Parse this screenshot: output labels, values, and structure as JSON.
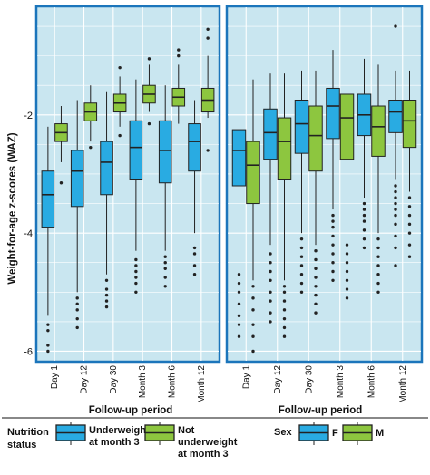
{
  "chart_data": {
    "type": "boxplot",
    "ylabel": "Weight-for-age z-scores (WAZ)",
    "xlabel": "Follow-up period",
    "ylim": [
      -6.1,
      -0.3
    ],
    "yticks": [
      -6,
      -4,
      -2
    ],
    "categories": [
      "Day 1",
      "Day 12",
      "Day 30",
      "Month 3",
      "Month 6",
      "Month 12"
    ],
    "grid": true,
    "colors": {
      "blue": "#29abe2",
      "green": "#8dc63f",
      "panel": "#c9e6f0",
      "frame": "#1b75bb"
    },
    "panels": [
      {
        "legend_title": "Nutrition status",
        "series": [
          {
            "name": "Underweight at month 3",
            "color": "#29abe2",
            "boxes": [
              {
                "whisker_low": -5.4,
                "q1": -3.9,
                "median": -3.35,
                "q3": -2.95,
                "whisker_high": -2.2,
                "outliers": [
                  -5.55,
                  -5.65,
                  -5.9,
                  -6.0
                ]
              },
              {
                "whisker_low": -5.0,
                "q1": -3.55,
                "median": -2.95,
                "q3": -2.6,
                "whisker_high": -1.75,
                "outliers": [
                  -5.1,
                  -5.2,
                  -5.3,
                  -5.45,
                  -5.6
                ]
              },
              {
                "whisker_low": -4.7,
                "q1": -3.35,
                "median": -2.8,
                "q3": -2.45,
                "whisker_high": -1.6,
                "outliers": [
                  -4.8,
                  -4.95,
                  -5.05,
                  -5.15,
                  -5.25
                ]
              },
              {
                "whisker_low": -4.3,
                "q1": -3.1,
                "median": -2.55,
                "q3": -2.1,
                "whisker_high": -1.4,
                "outliers": [
                  -4.45,
                  -4.55,
                  -4.65,
                  -4.75,
                  -4.85,
                  -5.0
                ]
              },
              {
                "whisker_low": -4.3,
                "q1": -3.15,
                "median": -2.6,
                "q3": -2.1,
                "whisker_high": -1.5,
                "outliers": [
                  -4.4,
                  -4.5,
                  -4.6,
                  -4.75,
                  -4.9
                ]
              },
              {
                "whisker_low": -4.0,
                "q1": -2.95,
                "median": -2.45,
                "q3": -2.15,
                "whisker_high": -1.75,
                "outliers": [
                  -4.25,
                  -4.35,
                  -4.55,
                  -4.7
                ]
              }
            ]
          },
          {
            "name": "Not underweight at month 3",
            "color": "#8dc63f",
            "boxes": [
              {
                "whisker_low": -2.8,
                "q1": -2.45,
                "median": -2.3,
                "q3": -2.15,
                "whisker_high": -1.85,
                "outliers": [
                  -3.15
                ]
              },
              {
                "whisker_low": -2.45,
                "q1": -2.1,
                "median": -1.95,
                "q3": -1.8,
                "whisker_high": -1.5,
                "outliers": [
                  -2.55
                ]
              },
              {
                "whisker_low": -2.2,
                "q1": -1.95,
                "median": -1.8,
                "q3": -1.65,
                "whisker_high": -1.35,
                "outliers": [
                  -1.2,
                  -2.35
                ]
              },
              {
                "whisker_low": -1.95,
                "q1": -1.8,
                "median": -1.65,
                "q3": -1.5,
                "whisker_high": -1.15,
                "outliers": [
                  -1.05,
                  -2.15
                ]
              },
              {
                "whisker_low": -2.15,
                "q1": -1.85,
                "median": -1.7,
                "q3": -1.55,
                "whisker_high": -1.15,
                "outliers": [
                  -1.0,
                  -0.9
                ]
              },
              {
                "whisker_low": -2.05,
                "q1": -1.95,
                "median": -1.75,
                "q3": -1.55,
                "whisker_high": -1.0,
                "outliers": [
                  -0.55,
                  -0.7,
                  -2.6
                ]
              }
            ]
          }
        ]
      },
      {
        "legend_title": "Sex",
        "series": [
          {
            "name": "F",
            "color": "#29abe2",
            "boxes": [
              {
                "whisker_low": -4.6,
                "q1": -3.2,
                "median": -2.6,
                "q3": -2.25,
                "whisker_high": -1.5,
                "outliers": [
                  -4.7,
                  -4.85,
                  -5.0,
                  -5.2,
                  -5.4,
                  -5.55,
                  -5.75
                ]
              },
              {
                "whisker_low": -4.2,
                "q1": -2.75,
                "median": -2.3,
                "q3": -1.9,
                "whisker_high": -1.3,
                "outliers": [
                  -4.35,
                  -4.5,
                  -4.65,
                  -4.8,
                  -5.0,
                  -5.15,
                  -5.35,
                  -5.5
                ]
              },
              {
                "whisker_low": -4.0,
                "q1": -2.65,
                "median": -2.15,
                "q3": -1.75,
                "whisker_high": -1.25,
                "outliers": [
                  -4.1,
                  -4.25,
                  -4.4,
                  -4.55,
                  -4.7,
                  -4.85,
                  -5.0
                ]
              },
              {
                "whisker_low": -3.6,
                "q1": -2.4,
                "median": -1.85,
                "q3": -1.55,
                "whisker_high": -0.9,
                "outliers": [
                  -3.7,
                  -3.8,
                  -3.9,
                  -4.05,
                  -4.2,
                  -4.35,
                  -4.5,
                  -4.65,
                  -4.8
                ]
              },
              {
                "whisker_low": -3.4,
                "q1": -2.35,
                "median": -2.0,
                "q3": -1.65,
                "whisker_high": -1.05,
                "outliers": [
                  -3.5,
                  -3.6,
                  -3.7,
                  -3.8,
                  -3.95,
                  -4.1,
                  -4.25
                ]
              },
              {
                "whisker_low": -3.1,
                "q1": -2.3,
                "median": -1.95,
                "q3": -1.75,
                "whisker_high": -1.25,
                "outliers": [
                  -0.5,
                  -3.2,
                  -3.3,
                  -3.4,
                  -3.5,
                  -3.6,
                  -3.7,
                  -3.85,
                  -4.05,
                  -4.25,
                  -4.55
                ]
              }
            ]
          },
          {
            "name": "M",
            "color": "#8dc63f",
            "boxes": [
              {
                "whisker_low": -4.8,
                "q1": -3.5,
                "median": -2.85,
                "q3": -2.45,
                "whisker_high": -1.4,
                "outliers": [
                  -4.9,
                  -5.1,
                  -5.3,
                  -5.55,
                  -5.75,
                  -6.0
                ]
              },
              {
                "whisker_low": -4.8,
                "q1": -3.1,
                "median": -2.45,
                "q3": -2.05,
                "whisker_high": -1.3,
                "outliers": [
                  -4.9,
                  -5.0,
                  -5.15,
                  -5.3,
                  -5.45,
                  -5.6,
                  -5.75
                ]
              },
              {
                "whisker_low": -4.2,
                "q1": -2.95,
                "median": -2.35,
                "q3": -1.85,
                "whisker_high": -1.25,
                "outliers": [
                  -4.3,
                  -4.45,
                  -4.6,
                  -4.75,
                  -4.9,
                  -5.05,
                  -5.2,
                  -5.35
                ]
              },
              {
                "whisker_low": -4.1,
                "q1": -2.75,
                "median": -2.05,
                "q3": -1.65,
                "whisker_high": -0.9,
                "outliers": [
                  -4.2,
                  -4.35,
                  -4.5,
                  -4.65,
                  -4.8,
                  -4.95,
                  -5.1
                ]
              },
              {
                "whisker_low": -4.0,
                "q1": -2.7,
                "median": -2.2,
                "q3": -1.85,
                "whisker_high": -1.15,
                "outliers": [
                  -4.1,
                  -4.25,
                  -4.4,
                  -4.55,
                  -4.7,
                  -4.85,
                  -5.0
                ]
              },
              {
                "whisker_low": -3.3,
                "q1": -2.55,
                "median": -2.1,
                "q3": -1.75,
                "whisker_high": -1.25,
                "outliers": [
                  -3.4,
                  -3.55,
                  -3.7,
                  -3.85,
                  -4.0,
                  -4.2,
                  -4.4
                ]
              }
            ]
          }
        ]
      }
    ]
  }
}
